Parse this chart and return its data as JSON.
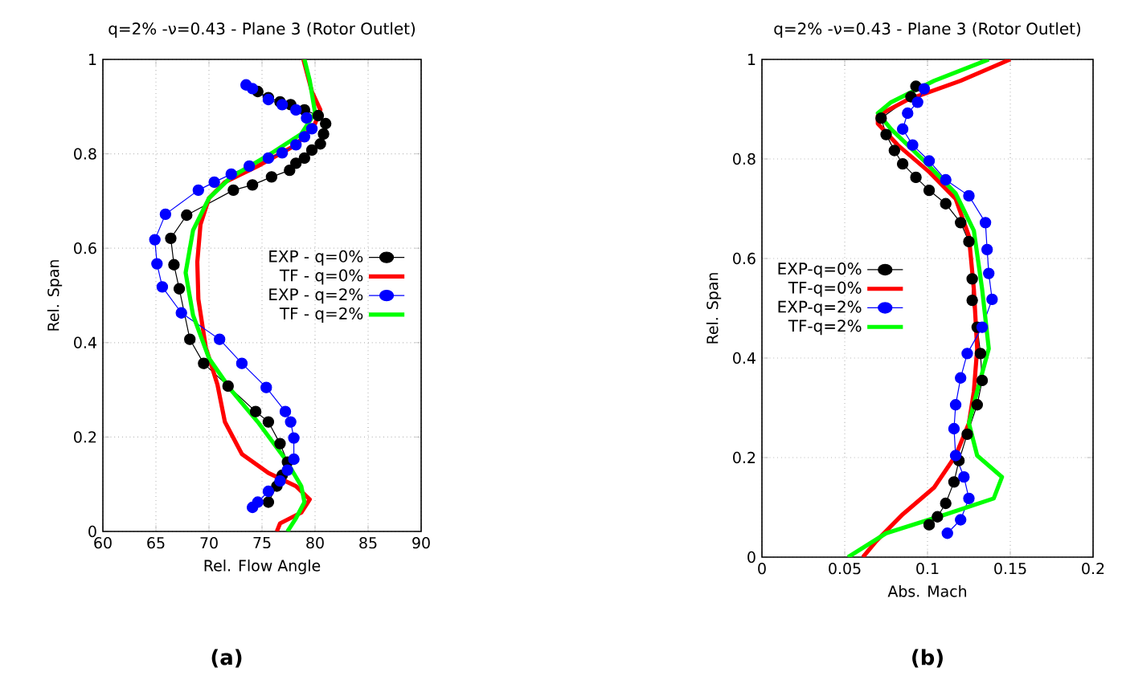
{
  "chart_data": [
    {
      "type": "line",
      "title": "q=2% -ν=0.43 - Plane 3 (Rotor Outlet)",
      "xlabel": "Rel. Flow Angle",
      "ylabel": "Rel. Span",
      "annotations": [
        "(a)"
      ],
      "xlim": [
        60,
        90
      ],
      "xticks": [
        60,
        65,
        70,
        75,
        80,
        85,
        90
      ],
      "ylim": [
        0,
        1
      ],
      "yticks": [
        0,
        0.2,
        0.4,
        0.6,
        0.8,
        1
      ],
      "grid": true,
      "legend": "right",
      "series": [
        {
          "name": "EXP - q=0%",
          "color": "#000000",
          "marker": "circle",
          "x": [
            74.6,
            75.6,
            76.7,
            77.7,
            79.0,
            80.3,
            81.0,
            80.8,
            80.5,
            79.7,
            79.0,
            78.2,
            77.6,
            75.9,
            74.1,
            72.3,
            67.9,
            66.4,
            66.7,
            67.2,
            68.2,
            69.5,
            71.8,
            74.4,
            75.6,
            76.7,
            77.4,
            76.9,
            76.4,
            75.6
          ],
          "values": [
            0.932,
            0.919,
            0.91,
            0.904,
            0.893,
            0.881,
            0.864,
            0.842,
            0.821,
            0.808,
            0.791,
            0.78,
            0.765,
            0.751,
            0.734,
            0.723,
            0.67,
            0.621,
            0.565,
            0.514,
            0.407,
            0.356,
            0.308,
            0.254,
            0.232,
            0.186,
            0.147,
            0.119,
            0.096,
            0.062
          ]
        },
        {
          "name": "TF - q=0%",
          "color": "#ff0000",
          "marker": "none",
          "x": [
            78.9,
            79.7,
            80.5,
            80.0,
            78.2,
            74.6,
            71.5,
            70.0,
            69.2,
            68.9,
            69.0,
            69.7,
            70.8,
            71.5,
            73.1,
            75.6,
            78.2,
            79.5,
            78.7,
            76.7,
            76.4
          ],
          "values": [
            1.0,
            0.932,
            0.893,
            0.864,
            0.819,
            0.774,
            0.74,
            0.706,
            0.65,
            0.571,
            0.492,
            0.39,
            0.311,
            0.232,
            0.164,
            0.124,
            0.096,
            0.068,
            0.04,
            0.017,
            0.0
          ]
        },
        {
          "name": "EXP - q=2%",
          "color": "#0000ff",
          "marker": "circle",
          "x": [
            73.5,
            74.1,
            75.6,
            76.9,
            78.2,
            79.2,
            79.7,
            79.0,
            78.2,
            76.9,
            75.6,
            73.8,
            72.1,
            70.5,
            69.0,
            65.9,
            64.9,
            65.1,
            65.6,
            67.4,
            71.0,
            73.1,
            75.4,
            77.2,
            77.7,
            78.0,
            78.0,
            77.4,
            76.7,
            75.6,
            74.6,
            74.1
          ],
          "values": [
            0.946,
            0.938,
            0.915,
            0.904,
            0.893,
            0.876,
            0.853,
            0.836,
            0.819,
            0.802,
            0.791,
            0.774,
            0.757,
            0.74,
            0.723,
            0.672,
            0.618,
            0.567,
            0.518,
            0.463,
            0.407,
            0.356,
            0.305,
            0.254,
            0.232,
            0.198,
            0.153,
            0.13,
            0.107,
            0.085,
            0.062,
            0.051
          ]
        },
        {
          "name": "TF - q=2%",
          "color": "#00ff00",
          "marker": "none",
          "x": [
            79.0,
            79.5,
            80.0,
            78.7,
            75.6,
            72.1,
            70.0,
            68.5,
            67.8,
            68.5,
            70.0,
            72.1,
            74.6,
            77.2,
            78.7,
            79.0,
            78.2,
            77.4
          ],
          "values": [
            1.0,
            0.955,
            0.887,
            0.842,
            0.797,
            0.751,
            0.706,
            0.638,
            0.548,
            0.458,
            0.367,
            0.299,
            0.232,
            0.153,
            0.096,
            0.062,
            0.028,
            0.0
          ]
        }
      ]
    },
    {
      "type": "line",
      "title": "q=2% -ν=0.43 - Plane 3 (Rotor Outlet)",
      "xlabel": "Abs. Mach",
      "ylabel": "Rel. Span",
      "annotations": [
        "(b)"
      ],
      "xlim": [
        0,
        0.2
      ],
      "xticks": [
        0,
        0.05,
        0.1,
        0.15,
        0.2
      ],
      "ylim": [
        0,
        1
      ],
      "yticks": [
        0,
        0.2,
        0.4,
        0.6,
        0.8,
        1
      ],
      "grid": true,
      "legend": "left",
      "series": [
        {
          "name": "EXP-q=0%",
          "color": "#000000",
          "marker": "circle",
          "x": [
            0.093,
            0.09,
            0.072,
            0.075,
            0.08,
            0.085,
            0.093,
            0.101,
            0.111,
            0.12,
            0.125,
            0.127,
            0.127,
            0.13,
            0.132,
            0.133,
            0.13,
            0.124,
            0.119,
            0.116,
            0.111,
            0.106,
            0.101
          ],
          "values": [
            0.946,
            0.925,
            0.882,
            0.849,
            0.817,
            0.79,
            0.763,
            0.737,
            0.71,
            0.672,
            0.634,
            0.559,
            0.516,
            0.462,
            0.409,
            0.355,
            0.306,
            0.247,
            0.194,
            0.151,
            0.108,
            0.081,
            0.065
          ]
        },
        {
          "name": "TF-q=0%",
          "color": "#ff0000",
          "marker": "none",
          "x": [
            0.15,
            0.12,
            0.088,
            0.07,
            0.07,
            0.082,
            0.101,
            0.117,
            0.125,
            0.128,
            0.13,
            0.128,
            0.125,
            0.117,
            0.104,
            0.085,
            0.069,
            0.061
          ],
          "values": [
            1.0,
            0.957,
            0.919,
            0.887,
            0.871,
            0.828,
            0.774,
            0.72,
            0.645,
            0.538,
            0.419,
            0.333,
            0.269,
            0.204,
            0.14,
            0.086,
            0.032,
            0.0
          ]
        },
        {
          "name": "EXP-q=2%",
          "color": "#0000ff",
          "marker": "circle",
          "x": [
            0.098,
            0.094,
            0.088,
            0.085,
            0.091,
            0.101,
            0.111,
            0.125,
            0.135,
            0.136,
            0.137,
            0.139,
            0.133,
            0.124,
            0.12,
            0.117,
            0.116,
            0.117,
            0.122,
            0.125,
            0.12,
            0.112
          ],
          "values": [
            0.941,
            0.914,
            0.892,
            0.86,
            0.828,
            0.796,
            0.758,
            0.726,
            0.672,
            0.618,
            0.57,
            0.518,
            0.462,
            0.409,
            0.36,
            0.306,
            0.258,
            0.204,
            0.161,
            0.118,
            0.075,
            0.048
          ]
        },
        {
          "name": "TF-q=2%",
          "color": "#00ff00",
          "marker": "none",
          "x": [
            0.137,
            0.104,
            0.078,
            0.07,
            0.078,
            0.098,
            0.117,
            0.128,
            0.133,
            0.137,
            0.13,
            0.125,
            0.13,
            0.145,
            0.14,
            0.111,
            0.075,
            0.052
          ],
          "values": [
            1.0,
            0.957,
            0.914,
            0.892,
            0.86,
            0.796,
            0.731,
            0.656,
            0.538,
            0.419,
            0.333,
            0.269,
            0.204,
            0.161,
            0.118,
            0.086,
            0.048,
            0.0
          ]
        }
      ]
    }
  ]
}
